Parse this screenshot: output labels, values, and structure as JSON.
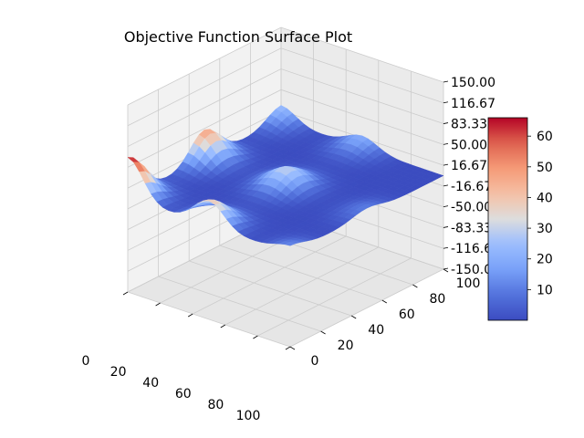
{
  "chart_data": {
    "type": "surface3d",
    "title": "Objective Function Surface Plot",
    "x_ticks": [
      0,
      20,
      40,
      60,
      80,
      100
    ],
    "y_ticks": [
      0,
      20,
      40,
      60,
      80,
      100
    ],
    "z_tick_labels": [
      "150.00",
      "116.67",
      "83.33",
      "50.00",
      "16.67",
      "-16.67",
      "-50.00",
      "-83.33",
      "-116.67",
      "-150.00"
    ],
    "zlim": [
      -150,
      150
    ],
    "xlim": [
      0,
      100
    ],
    "ylim": [
      0,
      100
    ],
    "colormap": "coolwarm",
    "colorbar": {
      "min": 0,
      "max": 66,
      "ticks": [
        10,
        20,
        30,
        40,
        50,
        60
      ]
    },
    "surface": {
      "description": "bumps: peaks along x at 0,50 and y at 0,50,100",
      "peaks": [
        {
          "x": 0,
          "y": 0,
          "z": 66
        },
        {
          "x": 0,
          "y": 50,
          "z": 48
        },
        {
          "x": 50,
          "y": 0,
          "z": 40
        },
        {
          "x": 50,
          "y": 50,
          "z": 30
        },
        {
          "x": 0,
          "y": 100,
          "z": 25
        },
        {
          "x": 50,
          "y": 100,
          "z": 20
        },
        {
          "x": 100,
          "y": 0,
          "z": 12
        },
        {
          "x": 100,
          "y": 50,
          "z": 10
        }
      ],
      "grid_n": 28
    }
  },
  "colors": {
    "pane": "#f2f2f2",
    "grid": "#cccccc",
    "axis": "#000000"
  }
}
